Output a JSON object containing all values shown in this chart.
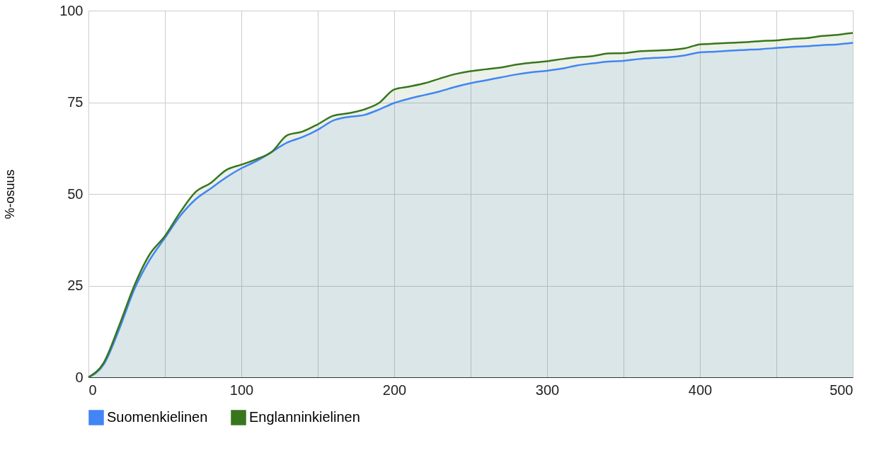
{
  "chart_data": {
    "type": "area",
    "ylabel": "%-osuus",
    "x": [
      0,
      10,
      20,
      30,
      40,
      50,
      60,
      70,
      80,
      90,
      100,
      110,
      120,
      130,
      140,
      150,
      160,
      170,
      180,
      190,
      200,
      210,
      220,
      230,
      240,
      250,
      260,
      270,
      280,
      290,
      300,
      310,
      320,
      330,
      340,
      350,
      360,
      370,
      380,
      390,
      400,
      410,
      420,
      430,
      440,
      450,
      460,
      470,
      480,
      490,
      500
    ],
    "series": [
      {
        "name": "Suomenkielinen",
        "color": "#4285f4",
        "values": [
          0,
          3.5,
          13,
          24,
          32,
          38,
          44,
          48.5,
          51.5,
          54.5,
          57,
          59,
          61.5,
          64,
          65.5,
          67.5,
          70,
          71,
          71.5,
          73,
          74.8,
          76,
          77,
          78,
          79.2,
          80.2,
          81,
          81.8,
          82.6,
          83.2,
          83.6,
          84.2,
          85.1,
          85.6,
          86.1,
          86.3,
          86.8,
          87.1,
          87.3,
          87.8,
          88.6,
          88.8,
          89.1,
          89.3,
          89.5,
          89.8,
          90.1,
          90.3,
          90.6,
          90.8,
          91.2
        ]
      },
      {
        "name": "Englanninkielinen",
        "color": "#38761d",
        "values": [
          0,
          4,
          14,
          25,
          33.5,
          38.5,
          45,
          50.5,
          53,
          56.5,
          58,
          59.5,
          61.5,
          66,
          67,
          69,
          71.3,
          72,
          73,
          74.8,
          78.5,
          79.3,
          80.2,
          81.5,
          82.7,
          83.5,
          84,
          84.5,
          85.3,
          85.8,
          86.2,
          86.8,
          87.3,
          87.6,
          88.3,
          88.4,
          88.9,
          89.1,
          89.3,
          89.7,
          90.8,
          91,
          91.2,
          91.4,
          91.7,
          91.9,
          92.3,
          92.5,
          93.1,
          93.4,
          93.9
        ]
      }
    ],
    "xlim": [
      0,
      500
    ],
    "xticks": [
      0,
      {
        "value": 50,
        "label": null
      },
      100,
      {
        "value": 150,
        "label": null
      },
      200,
      {
        "value": 250,
        "label": null
      },
      300,
      {
        "value": 350,
        "label": null
      },
      400,
      {
        "value": 450,
        "label": null
      },
      500
    ],
    "ylim": [
      0,
      100
    ],
    "yticks": [
      0,
      25,
      50,
      75,
      100
    ],
    "grid": true,
    "legend": "bottom",
    "marker": "none",
    "line_style": "solid"
  }
}
